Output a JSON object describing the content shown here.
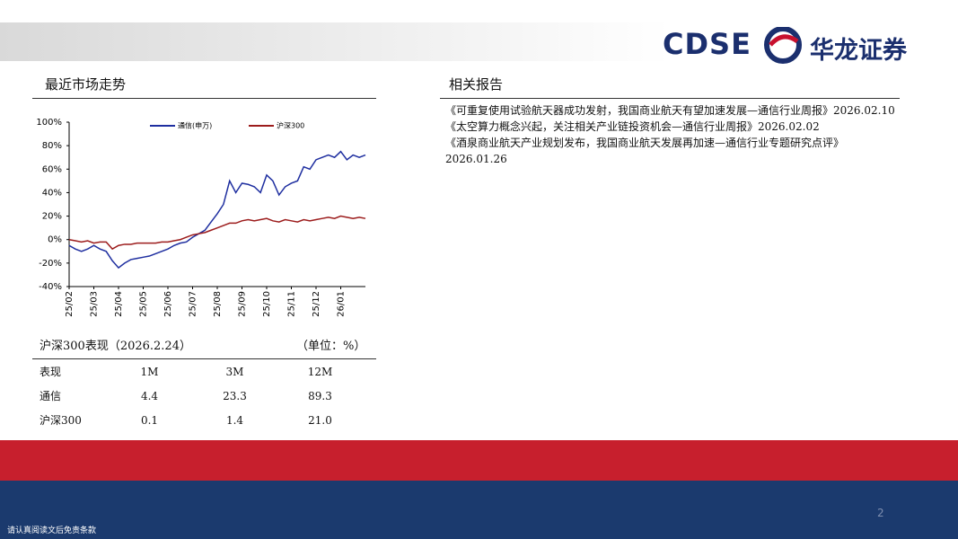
{
  "header": {
    "brand": "CDSE",
    "company": "华龙证券"
  },
  "market": {
    "title": "最近市场走势"
  },
  "chart_data": {
    "type": "line",
    "categories": [
      "25/02",
      null,
      null,
      null,
      "25/03",
      null,
      null,
      null,
      "25/04",
      null,
      null,
      null,
      "25/05",
      null,
      null,
      null,
      "25/06",
      null,
      null,
      null,
      "25/07",
      null,
      null,
      null,
      "25/08",
      null,
      null,
      null,
      "25/09",
      null,
      null,
      null,
      "25/10",
      null,
      null,
      null,
      "25/11",
      null,
      null,
      null,
      "25/12",
      null,
      null,
      null,
      "26/01",
      null,
      null,
      null,
      null
    ],
    "series": [
      {
        "name": "通信(申万)",
        "color": "#1f2fa0",
        "values": [
          -5,
          -8,
          -10,
          -8,
          -5,
          -8,
          -10,
          -18,
          -24,
          -20,
          -17,
          -16,
          -15,
          -14,
          -12,
          -10,
          -8,
          -5,
          -3,
          -2,
          2,
          5,
          8,
          15,
          22,
          30,
          50,
          40,
          48,
          47,
          45,
          40,
          55,
          50,
          38,
          45,
          48,
          50,
          62,
          60,
          68,
          70,
          72,
          70,
          75,
          68,
          72,
          70,
          72
        ]
      },
      {
        "name": "沪深300",
        "color": "#9c1c1c",
        "values": [
          0,
          -1,
          -2,
          -1,
          -3,
          -2,
          -2,
          -8,
          -5,
          -4,
          -4,
          -3,
          -3,
          -3,
          -3,
          -2,
          -2,
          -1,
          0,
          2,
          4,
          5,
          6,
          8,
          10,
          12,
          14,
          14,
          16,
          17,
          16,
          17,
          18,
          16,
          15,
          17,
          16,
          15,
          17,
          16,
          17,
          18,
          19,
          18,
          20,
          19,
          18,
          19,
          18
        ]
      }
    ],
    "ylim": [
      -40,
      100
    ],
    "yticks": [
      {
        "value": -40,
        "label": "-40%"
      },
      {
        "value": -20,
        "label": "-20%"
      },
      {
        "value": 0,
        "label": "0%"
      },
      {
        "value": 20,
        "label": "20%"
      },
      {
        "value": 40,
        "label": "40%"
      },
      {
        "value": 60,
        "label": "60%"
      },
      {
        "value": 80,
        "label": "80%"
      },
      {
        "value": 100,
        "label": "100%"
      }
    ],
    "legend": "top"
  },
  "perf": {
    "title": "沪深300表现（2026.2.24）",
    "unit": "（单位：%）",
    "header": [
      "表现",
      "1M",
      "3M",
      "12M"
    ],
    "rows": [
      [
        "通信",
        "4.4",
        "23.3",
        "89.3"
      ],
      [
        "沪深300",
        "0.1",
        "1.4",
        "21.0"
      ]
    ]
  },
  "reports": {
    "title": "相关报告",
    "items": [
      "《可重复使用试验航天器成功发射，我国商业航天有望加速发展—通信行业周报》2026.02.10",
      "《太空算力概念兴起，关注相关产业链投资机会—通信行业周报》2026.02.02",
      "《酒泉商业航天产业规划发布，我国商业航天发展再加速—通信行业专题研究点评》2026.01.26"
    ]
  },
  "footer": {
    "disclaimer": "请认真阅读文后免责条款",
    "page": "2"
  }
}
